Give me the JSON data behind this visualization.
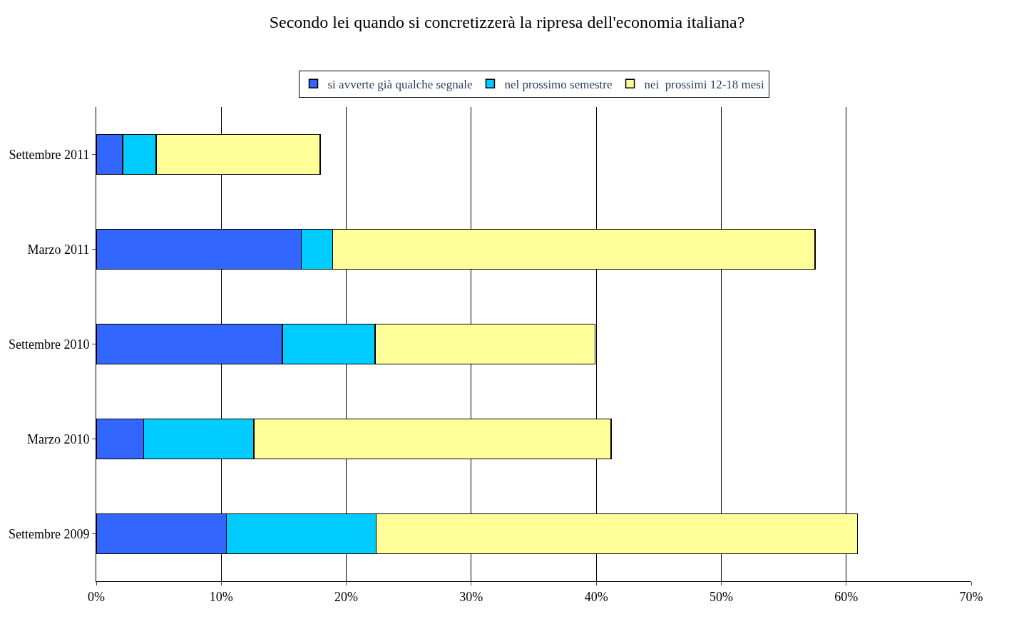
{
  "chart_data": {
    "type": "bar",
    "orientation": "horizontal",
    "stacked": true,
    "title": "Secondo lei quando si concretizzerà la ripresa dell'economia italiana?",
    "categories": [
      "Settembre 2011",
      "Marzo 2011",
      "Settembre 2010",
      "Marzo 2010",
      "Settembre 2009"
    ],
    "series": [
      {
        "name": "si avverte già qualche segnale",
        "color": "#3366ff",
        "values": [
          2.1,
          16.4,
          14.9,
          3.8,
          10.4
        ]
      },
      {
        "name": "nel prossimo semestre",
        "color": "#00ccff",
        "values": [
          2.7,
          2.5,
          7.4,
          8.8,
          12.0
        ]
      },
      {
        "name": "nei  prossimi 12-18 mesi",
        "color": "#ffff99",
        "values": [
          13.1,
          38.6,
          17.6,
          28.6,
          38.5
        ]
      }
    ],
    "xlim": [
      0,
      70
    ],
    "xticks": [
      {
        "value": 0,
        "label": "0%"
      },
      {
        "value": 10,
        "label": "10%"
      },
      {
        "value": 20,
        "label": "20%"
      },
      {
        "value": 30,
        "label": "30%"
      },
      {
        "value": 40,
        "label": "40%"
      },
      {
        "value": 50,
        "label": "50%"
      },
      {
        "value": 60,
        "label": "60%"
      },
      {
        "value": 70,
        "label": "70%"
      }
    ],
    "grid": "x",
    "legend": "top"
  }
}
